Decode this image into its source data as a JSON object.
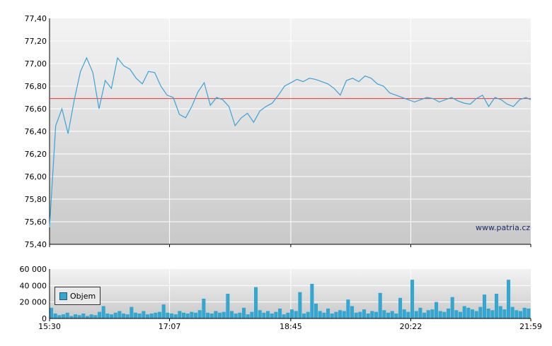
{
  "watermark": "www.patria.cz",
  "colors": {
    "price_line": "#3aa3d9",
    "reference_line": "#ee3333",
    "volume_bars": "#34a6cf",
    "grid": "#ffffff",
    "plot_bg_top": "#f3f3f3",
    "plot_bg_bottom": "#c9c9c9"
  },
  "chart_data": [
    {
      "type": "line",
      "name": "price",
      "ylim": [
        75.4,
        77.4
      ],
      "y_ticks": [
        "77,40",
        "77,20",
        "77,00",
        "76,80",
        "76,60",
        "76,40",
        "76,20",
        "76,00",
        "75,80",
        "75,60",
        "75,40"
      ],
      "x_ticks": [
        "15:30",
        "17:07",
        "18:45",
        "20:22",
        "21:59"
      ],
      "reference_line": 76.69,
      "grid": true,
      "series": [
        {
          "x": [
            "15:30",
            "15:35",
            "15:40",
            "15:45",
            "15:50",
            "15:55",
            "16:00",
            "16:05",
            "16:10",
            "16:15",
            "16:20",
            "16:25",
            "16:30",
            "16:35",
            "16:40",
            "16:45",
            "16:50",
            "16:55",
            "17:00",
            "17:05",
            "17:10",
            "17:15",
            "17:20",
            "17:25",
            "17:30",
            "17:35",
            "17:40",
            "17:45",
            "17:50",
            "17:55",
            "18:00",
            "18:05",
            "18:10",
            "18:15",
            "18:20",
            "18:25",
            "18:30",
            "18:35",
            "18:40",
            "18:45",
            "18:50",
            "18:55",
            "19:00",
            "19:05",
            "19:10",
            "19:15",
            "19:20",
            "19:25",
            "19:30",
            "19:35",
            "19:40",
            "19:45",
            "19:50",
            "19:55",
            "20:00",
            "20:05",
            "20:10",
            "20:15",
            "20:20",
            "20:25",
            "20:30",
            "20:35",
            "20:40",
            "20:45",
            "20:50",
            "20:55",
            "21:00",
            "21:05",
            "21:10",
            "21:15",
            "21:20",
            "21:25",
            "21:30",
            "21:35",
            "21:40",
            "21:45",
            "21:50",
            "21:55",
            "21:59"
          ],
          "values": [
            75.55,
            76.45,
            76.6,
            76.38,
            76.68,
            76.93,
            77.05,
            76.92,
            76.6,
            76.85,
            76.78,
            77.05,
            76.98,
            76.95,
            76.87,
            76.82,
            76.93,
            76.92,
            76.8,
            76.72,
            76.7,
            76.55,
            76.52,
            76.62,
            76.75,
            76.83,
            76.63,
            76.7,
            76.68,
            76.62,
            76.45,
            76.52,
            76.56,
            76.48,
            76.58,
            76.62,
            76.65,
            76.72,
            76.8,
            76.83,
            76.86,
            76.84,
            76.87,
            76.86,
            76.84,
            76.82,
            76.78,
            76.72,
            76.85,
            76.87,
            76.84,
            76.89,
            76.87,
            76.82,
            76.8,
            76.74,
            76.72,
            76.7,
            76.68,
            76.66,
            76.68,
            76.7,
            76.69,
            76.66,
            76.68,
            76.7,
            76.67,
            76.65,
            76.64,
            76.69,
            76.72,
            76.62,
            76.7,
            76.68,
            76.64,
            76.62,
            76.68,
            76.7,
            76.68
          ]
        }
      ]
    },
    {
      "type": "bar",
      "name": "volume",
      "ylim": [
        0,
        60000
      ],
      "y_ticks": [
        "60 000",
        "40 000",
        "20 000",
        "0"
      ],
      "x_ticks": [
        "15:30",
        "17:07",
        "18:45",
        "20:22",
        "21:59"
      ],
      "legend": "top-left",
      "series": [
        {
          "name": "Objem",
          "values": [
            13000,
            6000,
            4000,
            5000,
            7000,
            3000,
            5000,
            4000,
            6000,
            3000,
            5000,
            4000,
            8000,
            15000,
            6000,
            5000,
            7000,
            9000,
            6000,
            5000,
            14000,
            7000,
            6000,
            9000,
            5000,
            6000,
            7000,
            8000,
            17000,
            7000,
            6000,
            5000,
            9000,
            7000,
            6000,
            8000,
            7000,
            10000,
            24000,
            7000,
            6000,
            9000,
            7000,
            8000,
            30000,
            9000,
            6000,
            7000,
            13000,
            5000,
            8000,
            38000,
            10000,
            7000,
            9000,
            6000,
            8000,
            12000,
            5000,
            7000,
            11000,
            9000,
            32000,
            6000,
            8000,
            42000,
            18000,
            9000,
            7000,
            12000,
            6000,
            8000,
            10000,
            9000,
            23000,
            15000,
            7000,
            8000,
            11000,
            6000,
            9000,
            8000,
            31000,
            10000,
            7000,
            9000,
            6000,
            25000,
            11000,
            8000,
            47000,
            9000,
            13000,
            7000,
            10000,
            11000,
            20000,
            9000,
            8000,
            12000,
            26000,
            10000,
            8000,
            15000,
            13000,
            11000,
            9000,
            14000,
            29000,
            12000,
            10000,
            30000,
            15000,
            11000,
            47000,
            14000,
            10000,
            9000,
            13000,
            12000
          ]
        }
      ]
    }
  ]
}
